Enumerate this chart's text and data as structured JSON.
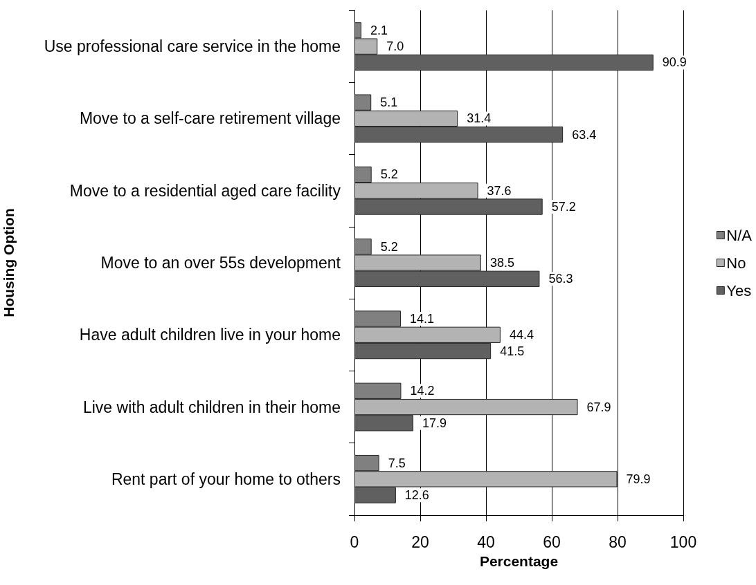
{
  "chart_data": {
    "type": "bar",
    "orientation": "horizontal",
    "categories": [
      "Use professional care service in the home",
      "Move to a self-care retirement village",
      "Move to a residential aged care facility",
      "Move to an over 55s development",
      "Have adult children live in your home",
      "Live with adult children in their home",
      "Rent part of your home to others"
    ],
    "series": [
      {
        "name": "N/A",
        "color": "#808080",
        "values": [
          2.1,
          5.1,
          5.2,
          5.2,
          14.1,
          14.2,
          7.5
        ],
        "value_labels": [
          "2.1",
          "5.1",
          "5.2",
          "5.2",
          "14.1",
          "14.2",
          "7.5"
        ]
      },
      {
        "name": "No",
        "color": "#b3b3b3",
        "values": [
          7.0,
          31.4,
          37.6,
          38.5,
          44.4,
          67.9,
          79.9
        ],
        "value_labels": [
          "7.0",
          "31.4",
          "37.6",
          "38.5",
          "44.4",
          "67.9",
          "79.9"
        ]
      },
      {
        "name": "Yes",
        "color": "#606060",
        "values": [
          90.9,
          63.4,
          57.2,
          56.3,
          41.5,
          17.9,
          12.6
        ],
        "value_labels": [
          "90.9",
          "63.4",
          "57.2",
          "56.3",
          "41.5",
          "17.9",
          "12.6"
        ]
      }
    ],
    "xlabel": "Percentage",
    "ylabel": "Housing Option",
    "xlim": [
      0,
      100
    ],
    "xticks": [
      0,
      20,
      40,
      60,
      80,
      100
    ],
    "grid": "x",
    "legend": "right"
  }
}
